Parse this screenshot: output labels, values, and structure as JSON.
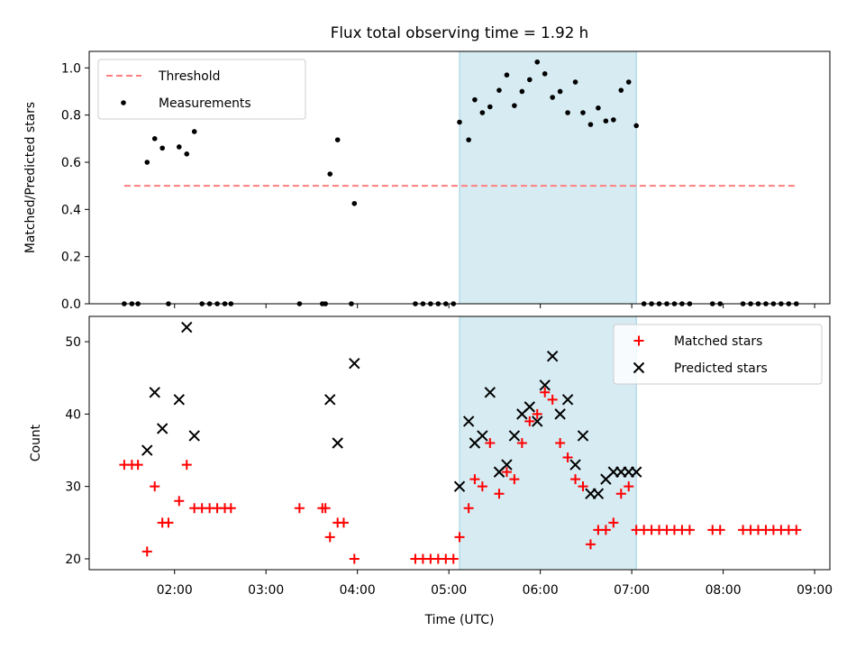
{
  "chart_data": {
    "title": "Flux total observing time = 1.92 h",
    "shaded_interval": {
      "start": "05:07",
      "end": "07:03",
      "color": "#add8e6"
    },
    "x_axis": {
      "label": "Time (UTC)",
      "range": [
        "01:04",
        "09:10"
      ],
      "ticks": [
        {
          "value": "02:00",
          "label": "02:00"
        },
        {
          "value": "03:00",
          "label": "03:00"
        },
        {
          "value": "04:00",
          "label": "04:00"
        },
        {
          "value": "05:00",
          "label": "05:00"
        },
        {
          "value": "06:00",
          "label": "06:00"
        },
        {
          "value": "07:00",
          "label": "07:00"
        },
        {
          "value": "08:00",
          "label": "08:00"
        },
        {
          "value": "09:00",
          "label": "09:00"
        }
      ]
    },
    "panels": [
      {
        "type": "scatter",
        "ylabel": "Matched/Predicted stars",
        "ylim": [
          0,
          1.07
        ],
        "yticks": [
          "0.0",
          "0.2",
          "0.4",
          "0.6",
          "0.8",
          "1.0"
        ],
        "legend_position": "top-left",
        "series": [
          {
            "name": "Threshold",
            "kind": "dashed-line",
            "color": "#ff7f7f",
            "x": [
              "01:27",
              "08:49"
            ],
            "y": [
              0.5,
              0.5
            ]
          },
          {
            "name": "Measurements",
            "kind": "dots",
            "color": "#000000",
            "x": [
              "01:27",
              "01:32",
              "01:36",
              "01:42",
              "01:47",
              "01:52",
              "01:56",
              "02:03",
              "02:08",
              "02:13",
              "02:18",
              "02:23",
              "02:28",
              "02:33",
              "02:37",
              "03:22",
              "03:37",
              "03:39",
              "03:42",
              "03:47",
              "03:56",
              "03:58",
              "04:38",
              "04:43",
              "04:48",
              "04:53",
              "04:58",
              "05:03",
              "05:07",
              "05:13",
              "05:17",
              "05:22",
              "05:27",
              "05:33",
              "05:38",
              "05:43",
              "05:48",
              "05:53",
              "05:58",
              "06:03",
              "06:08",
              "06:13",
              "06:18",
              "06:23",
              "06:28",
              "06:33",
              "06:38",
              "06:43",
              "06:48",
              "06:53",
              "06:58",
              "07:03",
              "07:08",
              "07:13",
              "07:18",
              "07:23",
              "07:28",
              "07:33",
              "07:38",
              "07:53",
              "07:58",
              "08:13",
              "08:18",
              "08:23",
              "08:28",
              "08:33",
              "08:38",
              "08:43",
              "08:48"
            ],
            "y": [
              0,
              0,
              0,
              0.6,
              0.7,
              0.66,
              0,
              0.665,
              0.635,
              0.73,
              0,
              0,
              0,
              0,
              0,
              0,
              0,
              0,
              0.55,
              0.695,
              0,
              0.425,
              0,
              0,
              0,
              0,
              0,
              0,
              0.77,
              0.695,
              0.865,
              0.81,
              0.835,
              0.905,
              0.97,
              0.84,
              0.9,
              0.95,
              1.025,
              0.975,
              0.875,
              0.9,
              0.81,
              0.94,
              0.81,
              0.76,
              0.83,
              0.775,
              0.78,
              0.905,
              0.94,
              0.755,
              0,
              0,
              0,
              0,
              0,
              0,
              0,
              0,
              0,
              0,
              0,
              0,
              0,
              0,
              0,
              0,
              0
            ]
          }
        ]
      },
      {
        "type": "scatter",
        "ylabel": "Count",
        "ylim": [
          18.5,
          53.5
        ],
        "yticks": [
          "20",
          "30",
          "40",
          "50"
        ],
        "legend_position": "top-right",
        "series": [
          {
            "name": "Matched stars",
            "kind": "plus",
            "color": "#ff0000",
            "x": [
              "01:27",
              "01:32",
              "01:36",
              "01:42",
              "01:47",
              "01:52",
              "01:56",
              "02:03",
              "02:08",
              "02:13",
              "02:18",
              "02:23",
              "02:28",
              "02:33",
              "02:37",
              "03:22",
              "03:37",
              "03:39",
              "03:42",
              "03:47",
              "03:51",
              "03:58",
              "04:38",
              "04:43",
              "04:48",
              "04:53",
              "04:58",
              "05:03",
              "05:07",
              "05:13",
              "05:17",
              "05:22",
              "05:27",
              "05:33",
              "05:38",
              "05:43",
              "05:48",
              "05:53",
              "05:58",
              "06:03",
              "06:08",
              "06:13",
              "06:18",
              "06:23",
              "06:28",
              "06:33",
              "06:38",
              "06:43",
              "06:48",
              "06:53",
              "06:58",
              "07:03",
              "07:08",
              "07:13",
              "07:18",
              "07:23",
              "07:28",
              "07:33",
              "07:38",
              "07:53",
              "07:58",
              "08:13",
              "08:18",
              "08:23",
              "08:28",
              "08:33",
              "08:38",
              "08:43",
              "08:48"
            ],
            "y": [
              33,
              33,
              33,
              21,
              30,
              25,
              25,
              28,
              33,
              27,
              27,
              27,
              27,
              27,
              27,
              27,
              27,
              27,
              23,
              25,
              25,
              20,
              20,
              20,
              20,
              20,
              20,
              20,
              23,
              27,
              31,
              30,
              36,
              29,
              32,
              31,
              36,
              39,
              40,
              43,
              42,
              36,
              34,
              31,
              30,
              22,
              24,
              24,
              25,
              29,
              30,
              24,
              24,
              24,
              24,
              24,
              24,
              24,
              24,
              24,
              24,
              24,
              24,
              24,
              24,
              24,
              24,
              24,
              24
            ]
          },
          {
            "name": "Predicted stars",
            "kind": "x",
            "color": "#000000",
            "x": [
              "01:42",
              "01:47",
              "01:52",
              "02:03",
              "02:08",
              "02:13",
              "03:42",
              "03:47",
              "03:58",
              "05:07",
              "05:13",
              "05:17",
              "05:22",
              "05:27",
              "05:33",
              "05:38",
              "05:43",
              "05:48",
              "05:53",
              "05:58",
              "06:03",
              "06:08",
              "06:13",
              "06:18",
              "06:23",
              "06:28",
              "06:33",
              "06:38",
              "06:43",
              "06:48",
              "06:53",
              "06:58",
              "07:03"
            ],
            "y": [
              35,
              43,
              38,
              42,
              52,
              37,
              42,
              36,
              47,
              30,
              39,
              36,
              37,
              43,
              32,
              33,
              37,
              40,
              41,
              39,
              44,
              48,
              40,
              42,
              33,
              37,
              29,
              29,
              31,
              32,
              32,
              32,
              32
            ]
          }
        ]
      }
    ]
  }
}
